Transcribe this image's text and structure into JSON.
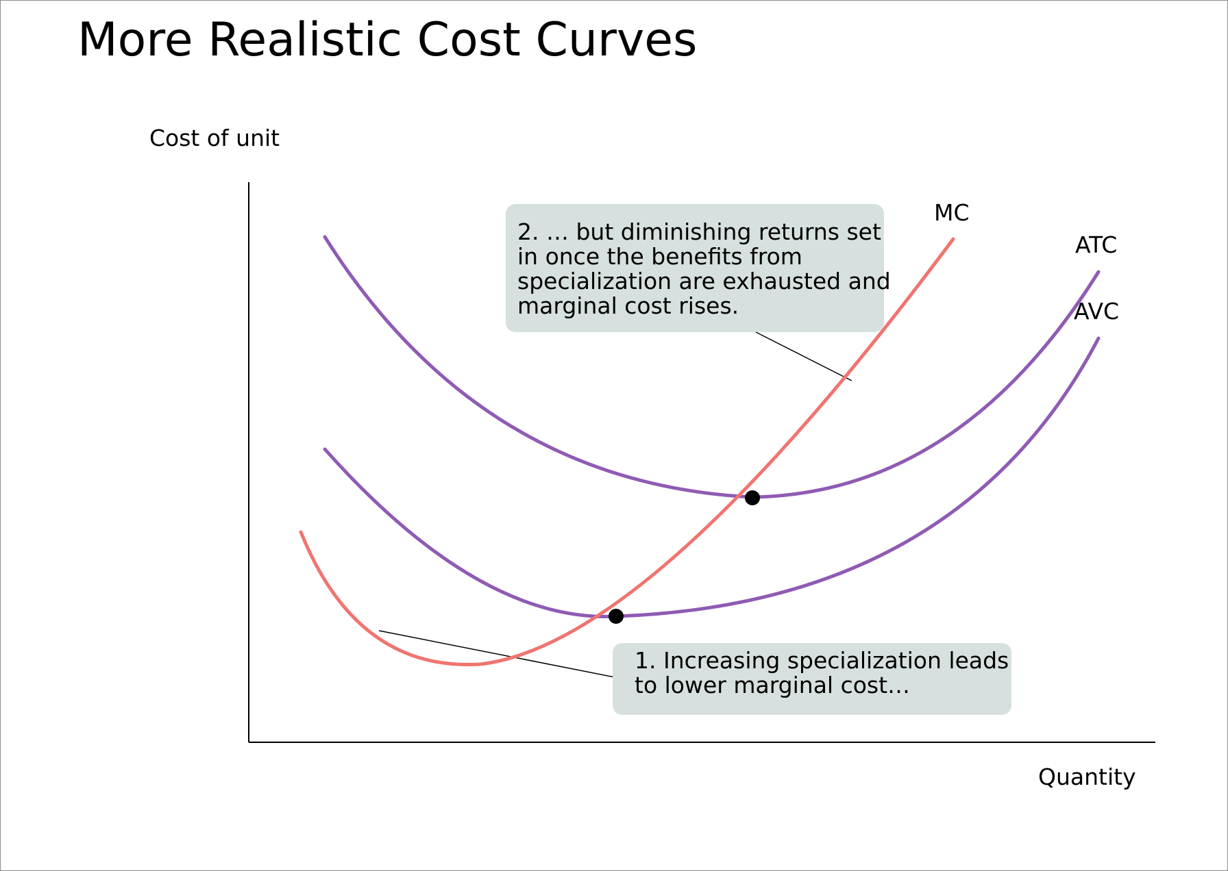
{
  "title": "More Realistic Cost Curves",
  "axes": {
    "y_label": "Cost of unit",
    "x_label": "Quantity"
  },
  "curves": {
    "mc": {
      "label": "MC",
      "color": "#f07470"
    },
    "atc": {
      "label": "ATC",
      "color": "#8f5bb4"
    },
    "avc": {
      "label": "AVC",
      "color": "#8f5bb4"
    }
  },
  "callouts": {
    "diminishing": {
      "lines": [
        "2. … but diminishing returns set",
        "in once the benefits from",
        "specialization are exhausted and",
        "marginal cost rises."
      ]
    },
    "specialization": {
      "lines": [
        "1. Increasing specialization leads",
        "to lower marginal cost…"
      ]
    }
  },
  "colors": {
    "callout_fill": "#d6e0de",
    "axis": "#000000",
    "intersection_dot": "#000000"
  }
}
